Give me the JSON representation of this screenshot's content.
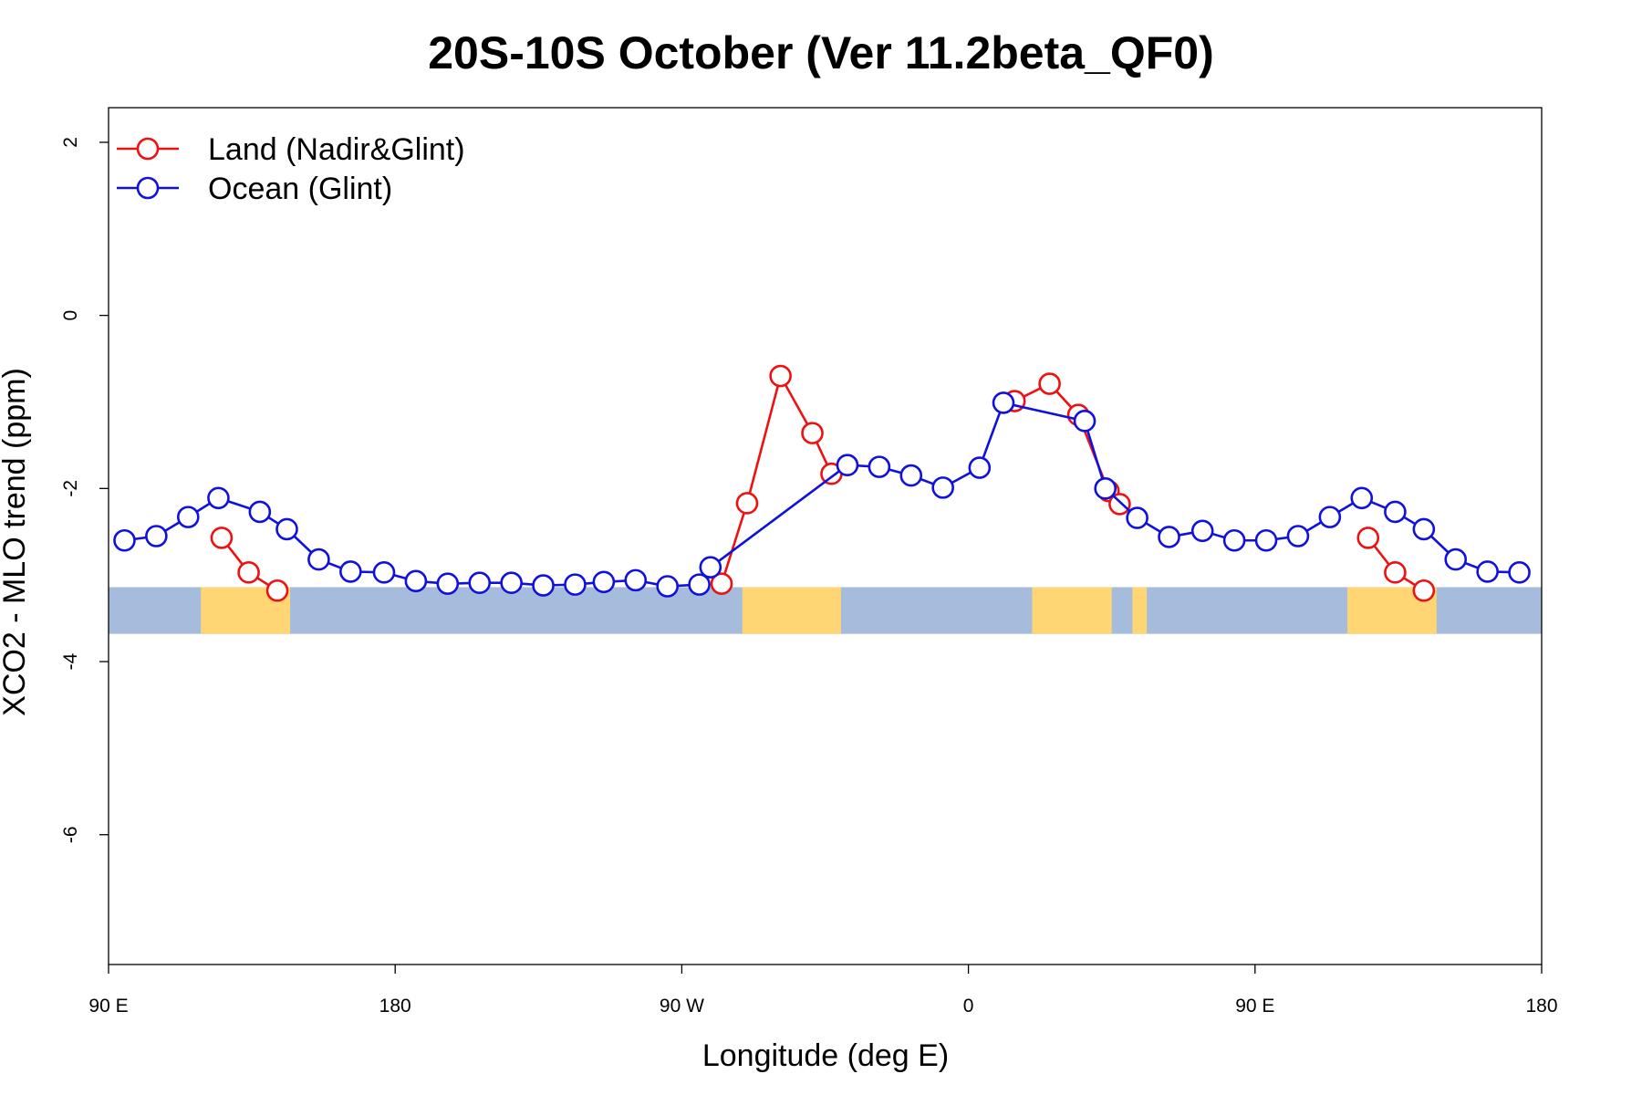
{
  "chart_data": {
    "type": "line",
    "title": "20S-10S October (Ver 11.2beta_QF0)",
    "xlabel": "Longitude (deg E)",
    "ylabel": "XCO2 - MLO trend (ppm)",
    "x_axis": {
      "range_deg_east_unwrapped": [
        90,
        540
      ],
      "ticks": [
        {
          "value": 90,
          "label": "90 E"
        },
        {
          "value": 180,
          "label": "180"
        },
        {
          "value": 270,
          "label": "90 W"
        },
        {
          "value": 360,
          "label": "0"
        },
        {
          "value": 450,
          "label": "90 E"
        },
        {
          "value": 540,
          "label": "180"
        }
      ]
    },
    "y_axis": {
      "range": [
        -7.5,
        2.4
      ],
      "ticks": [
        {
          "value": 2,
          "label": "2"
        },
        {
          "value": 0,
          "label": "0"
        },
        {
          "value": -2,
          "label": "-2"
        },
        {
          "value": -4,
          "label": "-4"
        },
        {
          "value": -6,
          "label": "-6"
        }
      ]
    },
    "grid": false,
    "legend_position": "top-left",
    "series": [
      {
        "name": "Land (Nadir&Glint)",
        "color": "#ee1111",
        "marker": "open-circle",
        "segments": [
          {
            "x": [
              125.5,
              134,
              143
            ],
            "y": [
              -2.57,
              -2.97,
              -3.18
            ]
          },
          {
            "x": [
              282.5,
              290.5,
              301,
              311,
              317
            ],
            "y": [
              -3.1,
              -2.17,
              -0.7,
              -1.36,
              -1.83
            ]
          },
          {
            "x": [
              374.5,
              385.5,
              394.5,
              404,
              407.5
            ],
            "y": [
              -0.99,
              -0.79,
              -1.15,
              -2.03,
              -2.18
            ]
          },
          {
            "x": [
              485.5,
              494,
              503
            ],
            "y": [
              -2.57,
              -2.97,
              -3.18
            ]
          }
        ]
      },
      {
        "name": "Ocean (Glint)",
        "color": "#1111dd",
        "marker": "open-circle",
        "segments": [
          {
            "x": [
              95,
              105,
              115,
              124.5,
              137.5,
              146,
              156,
              166,
              176.5,
              186.5,
              196.5,
              206.5,
              216.5,
              226.5,
              236.5,
              245.5,
              255.5,
              265.5,
              275.5,
              279,
              322,
              332,
              342,
              352,
              363.5,
              371,
              396.5,
              403,
              413,
              423,
              433.5,
              443.5,
              453.5,
              463.5,
              473.5,
              483.5,
              494,
              503,
              513,
              523,
              533
            ],
            "y": [
              -2.6,
              -2.55,
              -2.33,
              -2.11,
              -2.27,
              -2.47,
              -2.82,
              -2.96,
              -2.97,
              -3.07,
              -3.1,
              -3.09,
              -3.09,
              -3.12,
              -3.11,
              -3.08,
              -3.06,
              -3.13,
              -3.11,
              -2.91,
              -1.73,
              -1.75,
              -1.85,
              -1.99,
              -1.76,
              -1.01,
              -1.22,
              -2.0,
              -2.34,
              -2.56,
              -2.49,
              -2.6,
              -2.6,
              -2.55,
              -2.33,
              -2.11,
              -2.27,
              -2.47,
              -2.82,
              -2.96,
              -2.97
            ]
          }
        ]
      }
    ],
    "background_strip": {
      "lat_range": "20S-10S",
      "y_range": [
        -3.68,
        -3.14
      ],
      "ocean_color": "#a6bcdc",
      "land_color": "#ffd673",
      "land_x_ranges": [
        [
          119,
          147
        ],
        [
          289,
          320
        ],
        [
          380,
          405
        ],
        [
          411.5,
          416
        ],
        [
          479,
          507
        ]
      ]
    }
  }
}
